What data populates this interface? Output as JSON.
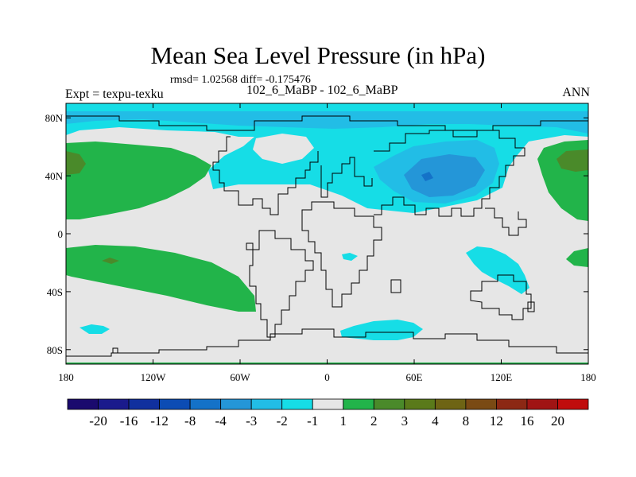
{
  "header": {
    "title": "Mean Sea Level Pressure (in hPa)",
    "stats": "rmsd= 1.02568 diff= -0.175476",
    "subtitle": "102_6_MaBP - 102_6_MaBP",
    "expt": "Expt = texpu-texku",
    "season": "ANN"
  },
  "axes": {
    "x_ticks": [
      {
        "lon": -180,
        "label": "180"
      },
      {
        "lon": -120,
        "label": "120W"
      },
      {
        "lon": -60,
        "label": "60W"
      },
      {
        "lon": 0,
        "label": "0"
      },
      {
        "lon": 60,
        "label": "60E"
      },
      {
        "lon": 120,
        "label": "120E"
      },
      {
        "lon": 180,
        "label": "180"
      }
    ],
    "y_ticks": [
      {
        "lat": 80,
        "label": "80N"
      },
      {
        "lat": 40,
        "label": "40N"
      },
      {
        "lat": 0,
        "label": "0"
      },
      {
        "lat": -40,
        "label": "40S"
      },
      {
        "lat": -80,
        "label": "80S"
      }
    ]
  },
  "colorbar": {
    "colors": [
      "#1a0a6e",
      "#1a1a8c",
      "#10309e",
      "#0c4cb4",
      "#1472c8",
      "#2496d8",
      "#22bde6",
      "#16dde6",
      "#e6e6e6",
      "#22b44a",
      "#4a8a2a",
      "#5a7a1a",
      "#6e6414",
      "#7a4a14",
      "#8c2814",
      "#a01414",
      "#c00c0c"
    ],
    "labels": [
      "-20",
      "-16",
      "-12",
      "-8",
      "-4",
      "-3",
      "-2",
      "-1",
      "1",
      "2",
      "3",
      "4",
      "8",
      "12",
      "16",
      "20"
    ]
  },
  "legend_colors": {
    "neutral": "#e6e6e6",
    "light_cyan": "#16dde6",
    "medium_blue": "#22bde6",
    "dark_blue": "#2496d8",
    "deepest_blue": "#1472c8",
    "green": "#22b44a",
    "dark_green": "#4a8a2a",
    "brown_green": "#6e6414"
  }
}
